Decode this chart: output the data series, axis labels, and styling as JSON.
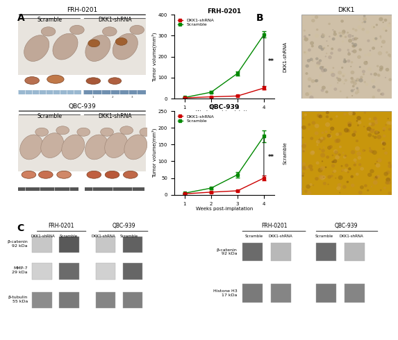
{
  "frh_weeks": [
    1,
    2,
    3,
    4
  ],
  "frh_scramble": [
    5,
    30,
    120,
    305
  ],
  "frh_scramble_err": [
    2,
    5,
    10,
    15
  ],
  "frh_dkk1": [
    3,
    8,
    12,
    50
  ],
  "frh_dkk1_err": [
    1,
    2,
    3,
    8
  ],
  "frh_ylim": [
    0,
    400
  ],
  "frh_yticks": [
    0,
    100,
    200,
    300,
    400
  ],
  "frh_title": "FRH-0201",
  "qbc_weeks": [
    1,
    2,
    3,
    4
  ],
  "qbc_scramble": [
    5,
    20,
    60,
    175
  ],
  "qbc_scramble_err": [
    1,
    3,
    8,
    18
  ],
  "qbc_dkk1": [
    3,
    8,
    12,
    50
  ],
  "qbc_dkk1_err": [
    1,
    2,
    3,
    7
  ],
  "qbc_ylim": [
    0,
    250
  ],
  "qbc_yticks": [
    0,
    50,
    100,
    150,
    200,
    250
  ],
  "qbc_title": "QBC-939",
  "xlabel": "Weeks post-implatation",
  "ylabel": "Tumor volume(mm³)",
  "scramble_color": "#008800",
  "dkk1_color": "#cc0000",
  "panel_A_label": "A",
  "panel_B_label": "B",
  "panel_C_label": "C",
  "dkk1_label": "DKK1-shRNA",
  "scramble_label": "Scramble",
  "significance": "**",
  "fig_bg": "#ffffff",
  "panel_b_title": "DKK1",
  "panel_b_row1": "DKK1-shRNA",
  "panel_b_row2": "Scramble",
  "panel_c_frh_label": "FRH-0201",
  "panel_c_qbc_label": "QBC-939",
  "western_labels": [
    "β-catenin\n92 kDa",
    "MMP-7\n29 kDa",
    "β-tubulin\n55 kDa"
  ],
  "western_labels2": [
    "β-catenin\n92 kDa",
    "Histone H3\n17 kDa"
  ],
  "photo_bg_frh": "#d8cfc4",
  "photo_bg_qbc": "#ccbfb4",
  "hist_dkk1_color": "#c8bca0",
  "hist_scramble_color": "#c8a050"
}
